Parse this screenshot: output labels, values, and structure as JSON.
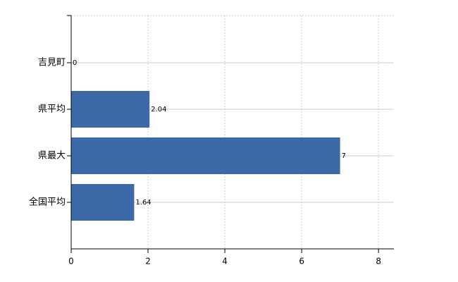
{
  "chart_data": {
    "type": "bar",
    "orientation": "horizontal",
    "categories": [
      "吉見町",
      "県平均",
      "県最大",
      "全国平均"
    ],
    "values": [
      0,
      2.04,
      7,
      1.64
    ],
    "color": "#3c6aa8",
    "xlim": [
      0,
      8.4
    ],
    "xticks": [
      0,
      2,
      4,
      6,
      8
    ],
    "grid": true
  }
}
